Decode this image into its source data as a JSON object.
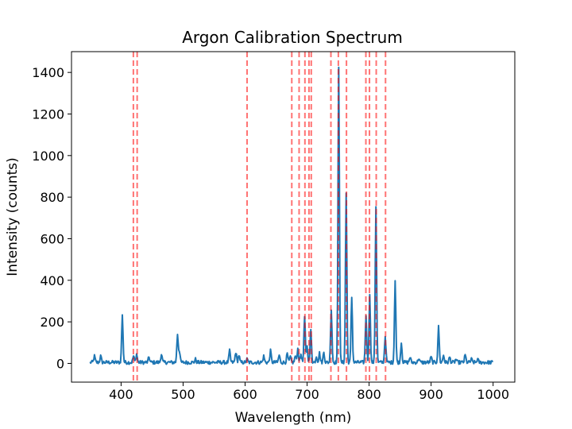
{
  "chart_data": {
    "type": "line",
    "title": "Argon Calibration Spectrum",
    "xlabel": "Wavelength (nm)",
    "ylabel": "Intensity (counts)",
    "xlim": [
      320,
      1035
    ],
    "ylim": [
      -90,
      1500
    ],
    "x_ticks": [
      400,
      500,
      600,
      700,
      800,
      900,
      1000
    ],
    "y_ticks": [
      0,
      200,
      400,
      600,
      800,
      1000,
      1200,
      1400
    ],
    "grid": false,
    "legend": "none",
    "series": [
      {
        "color": "#1f77b4",
        "x_range": [
          350,
          1000
        ],
        "baseline": 5,
        "peaks": [
          [
            357,
            35
          ],
          [
            367,
            35
          ],
          [
            402,
            230
          ],
          [
            420,
            35
          ],
          [
            425,
            45
          ],
          [
            445,
            30
          ],
          [
            465,
            45
          ],
          [
            491,
            140
          ],
          [
            494,
            60
          ],
          [
            520,
            20
          ],
          [
            575,
            60
          ],
          [
            585,
            55
          ],
          [
            590,
            40
          ],
          [
            603,
            20
          ],
          [
            630,
            35
          ],
          [
            641,
            60
          ],
          [
            655,
            40
          ],
          [
            668,
            45
          ],
          [
            673,
            30
          ],
          [
            681,
            35
          ],
          [
            685,
            70
          ],
          [
            690,
            45
          ],
          [
            696,
            220
          ],
          [
            700,
            80
          ],
          [
            706,
            160
          ],
          [
            715,
            35
          ],
          [
            720,
            50
          ],
          [
            727,
            55
          ],
          [
            739,
            260
          ],
          [
            751,
            1430
          ],
          [
            763,
            820
          ],
          [
            772,
            320
          ],
          [
            795,
            230
          ],
          [
            801,
            325
          ],
          [
            811,
            755
          ],
          [
            826,
            130
          ],
          [
            842,
            400
          ],
          [
            852,
            100
          ],
          [
            866,
            30
          ],
          [
            880,
            25
          ],
          [
            900,
            30
          ],
          [
            912,
            175
          ],
          [
            920,
            40
          ],
          [
            930,
            30
          ],
          [
            940,
            20
          ],
          [
            955,
            40
          ],
          [
            965,
            20
          ],
          [
            975,
            20
          ]
        ]
      }
    ],
    "reference_lines": {
      "color": "#ff0000",
      "style": "dashed",
      "x": [
        419.8,
        425.9,
        603.2,
        675.3,
        687.1,
        696.5,
        703.0,
        706.7,
        738.4,
        750.4,
        763.5,
        794.8,
        800.6,
        811.5,
        826.5
      ]
    }
  }
}
